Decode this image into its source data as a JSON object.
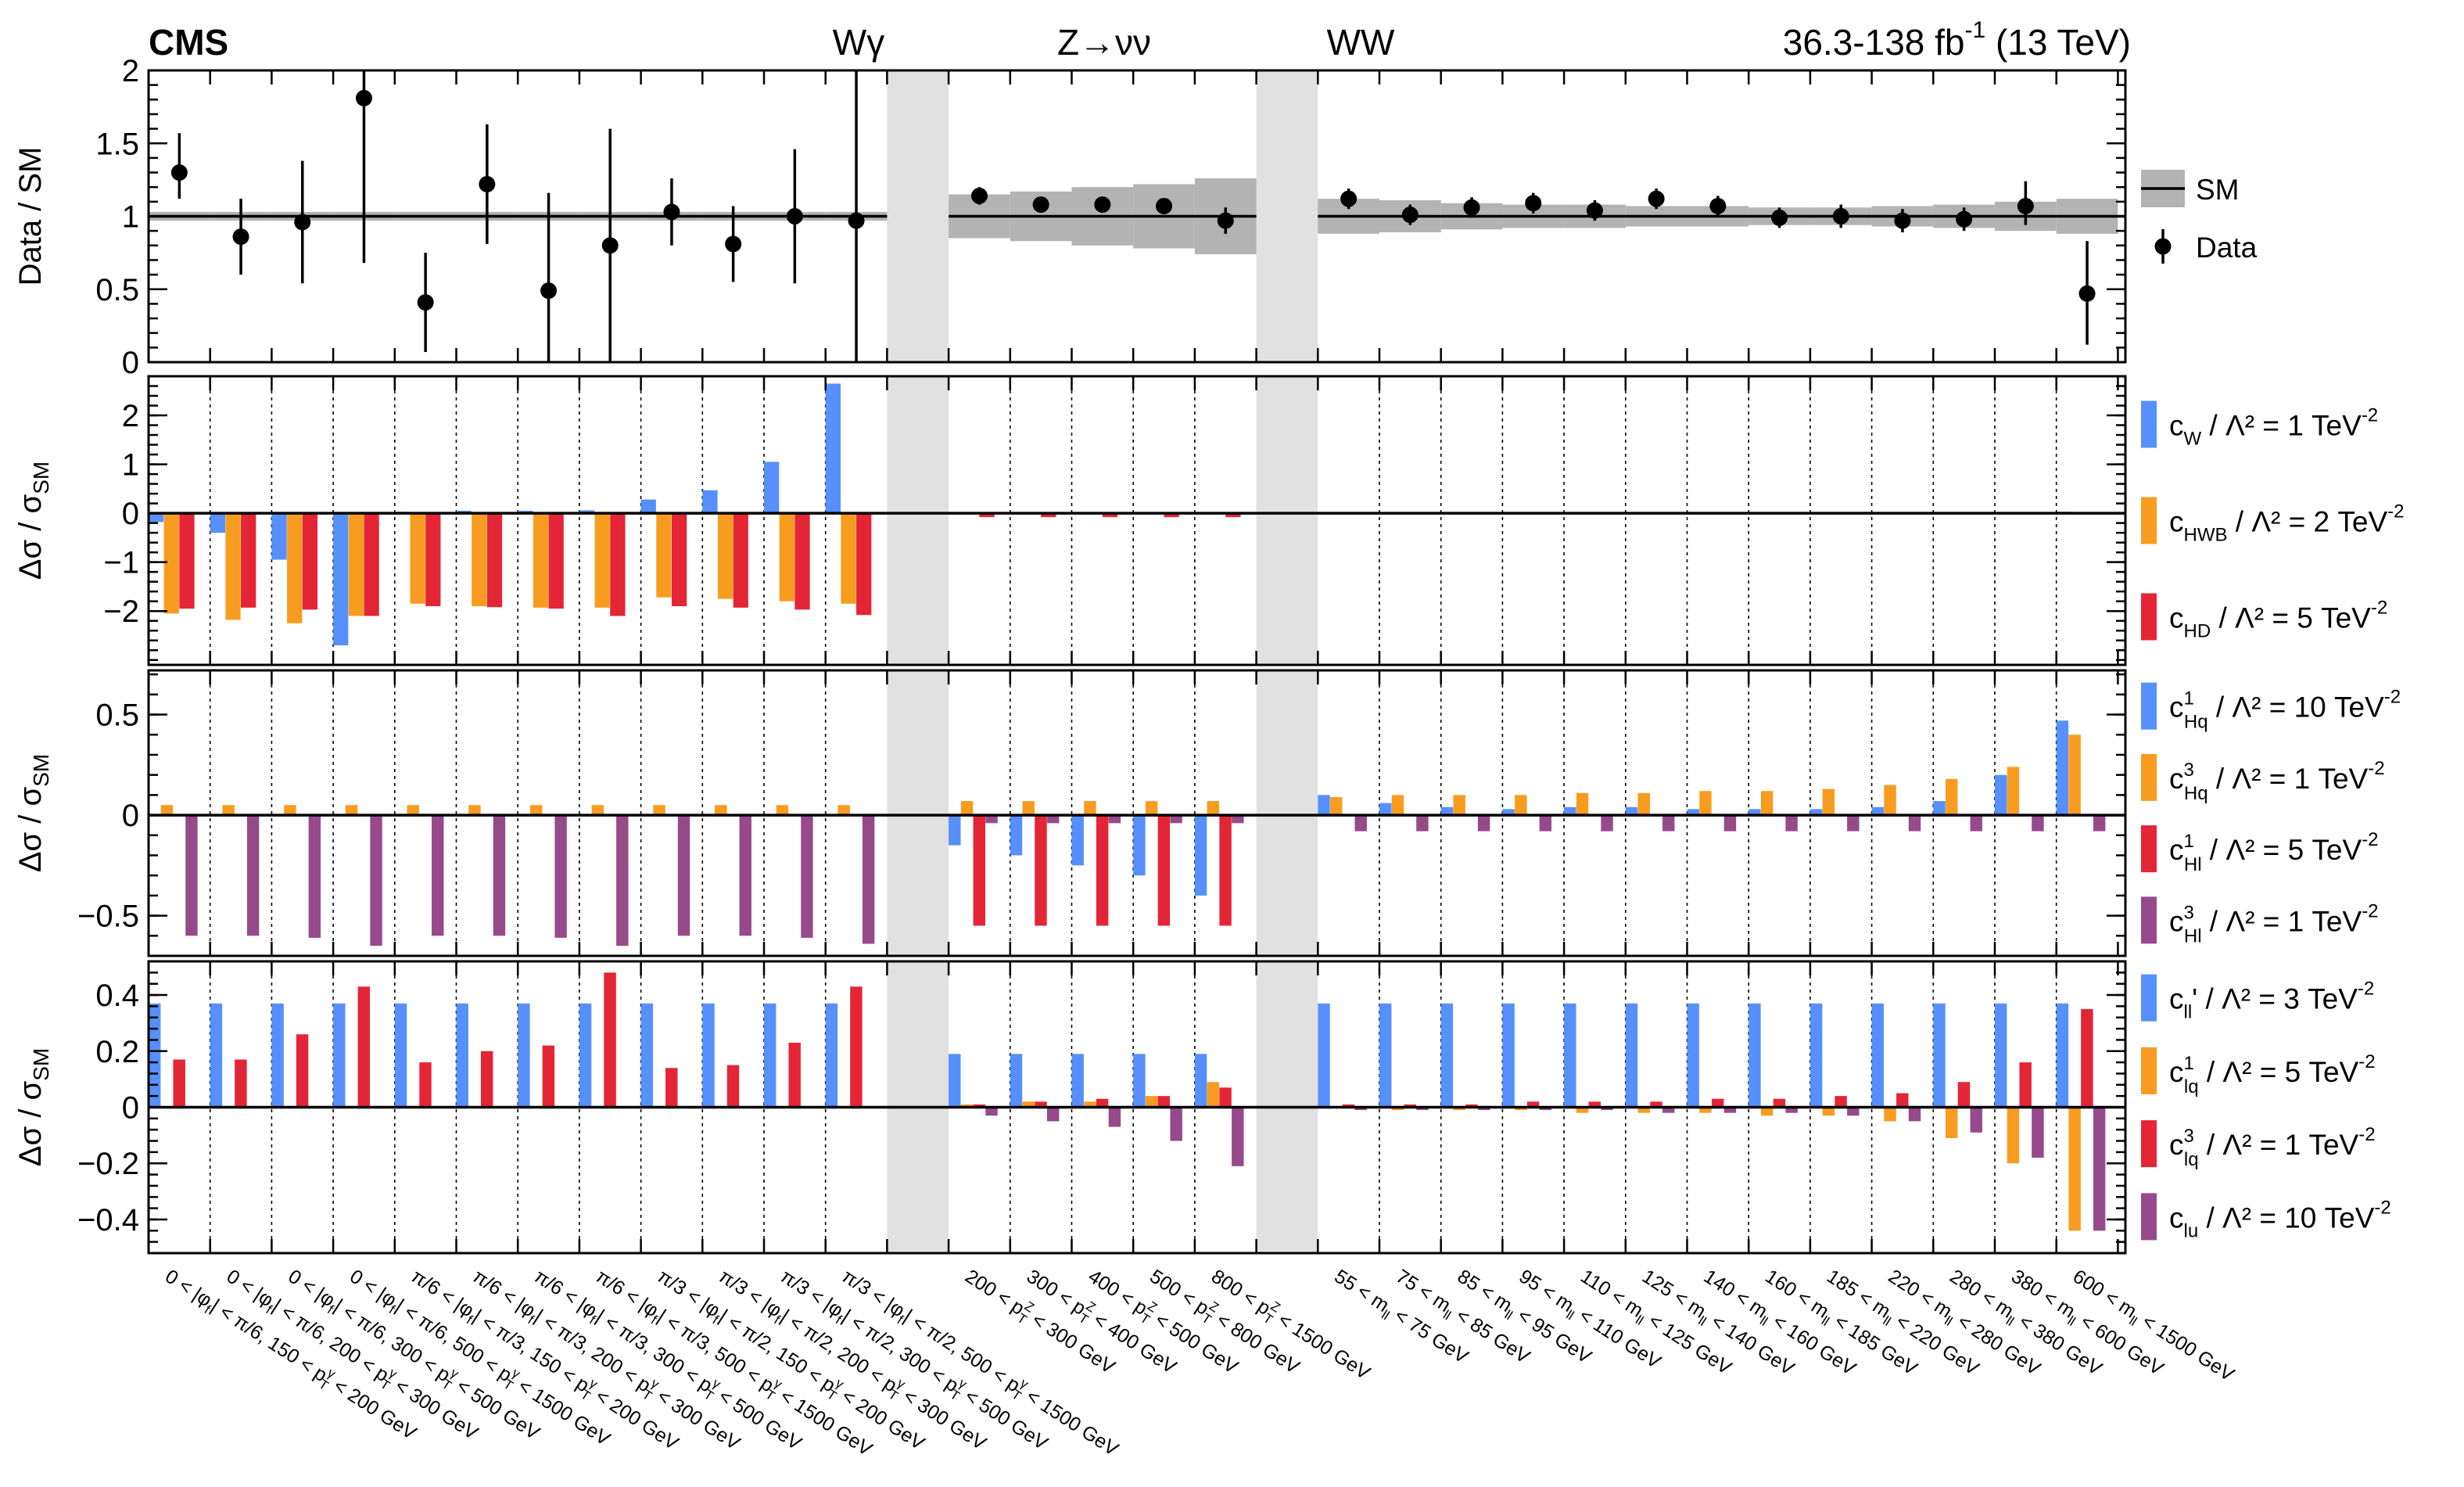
{
  "header": {
    "experiment": "CMS",
    "lumi": "36.3-138 fb",
    "lumi_sup": "-1",
    "energy": " (13 TeV)",
    "groups": [
      "Wγ",
      "Z→νν",
      "WW"
    ]
  },
  "colors": {
    "blue": "#5790fc",
    "orange": "#f89c20",
    "red": "#e42536",
    "purple": "#964a8b",
    "sm_band": "#b3b3b3",
    "gap": "#e1e1e1"
  },
  "chart_data": {
    "type": "bar",
    "categories": [
      "0 < |φ_f| < π/6, 150 < p_T^γ < 200 GeV",
      "0 < |φ_f| < π/6, 200 < p_T^γ < 300 GeV",
      "0 < |φ_f| < π/6, 300 < p_T^γ < 500 GeV",
      "0 < |φ_f| < π/6, 500 < p_T^γ < 1500 GeV",
      "π/6 < |φ_f| < π/3, 150 < p_T^γ < 200 GeV",
      "π/6 < |φ_f| < π/3, 200 < p_T^γ < 300 GeV",
      "π/6 < |φ_f| < π/3, 300 < p_T^γ < 500 GeV",
      "π/6 < |φ_f| < π/3, 500 < p_T^γ < 1500 GeV",
      "π/3 < |φ_f| < π/2, 150 < p_T^γ < 200 GeV",
      "π/3 < |φ_f| < π/2, 200 < p_T^γ < 300 GeV",
      "π/3 < |φ_f| < π/2, 300 < p_T^γ < 500 GeV",
      "π/3 < |φ_f| < π/2, 500 < p_T^γ < 1500 GeV",
      "200 < p_T^Z < 300 GeV",
      "300 < p_T^Z < 400 GeV",
      "400 < p_T^Z < 500 GeV",
      "500 < p_T^Z < 800 GeV",
      "800 < p_T^Z < 1500 GeV",
      "55 < m_ll < 75 GeV",
      "75 < m_ll < 85 GeV",
      "85 < m_ll < 95 GeV",
      "95 < m_ll < 110 GeV",
      "110 < m_ll < 125 GeV",
      "125 < m_ll < 140 GeV",
      "140 < m_ll < 160 GeV",
      "160 < m_ll < 185 GeV",
      "185 < m_ll < 220 GeV",
      "220 < m_ll < 280 GeV",
      "280 < m_ll < 380 GeV",
      "380 < m_ll < 600 GeV",
      "600 < m_ll < 1500 GeV"
    ],
    "category_labels": [
      {
        "pre": "0 < |φ",
        "sub1": "f",
        "mid": "| < π/6, 150 < p",
        "sub2": "T",
        "sup2": "γ",
        "post": " < 200 GeV"
      },
      {
        "pre": "0 < |φ",
        "sub1": "f",
        "mid": "| < π/6, 200 < p",
        "sub2": "T",
        "sup2": "γ",
        "post": " < 300 GeV"
      },
      {
        "pre": "0 < |φ",
        "sub1": "f",
        "mid": "| < π/6, 300 < p",
        "sub2": "T",
        "sup2": "γ",
        "post": " < 500 GeV"
      },
      {
        "pre": "0 < |φ",
        "sub1": "f",
        "mid": "| < π/6, 500 < p",
        "sub2": "T",
        "sup2": "γ",
        "post": " < 1500 GeV"
      },
      {
        "pre": "π/6 < |φ",
        "sub1": "f",
        "mid": "| < π/3, 150 < p",
        "sub2": "T",
        "sup2": "γ",
        "post": " < 200 GeV"
      },
      {
        "pre": "π/6 < |φ",
        "sub1": "f",
        "mid": "| < π/3, 200 < p",
        "sub2": "T",
        "sup2": "γ",
        "post": " < 300 GeV"
      },
      {
        "pre": "π/6 < |φ",
        "sub1": "f",
        "mid": "| < π/3, 300 < p",
        "sub2": "T",
        "sup2": "γ",
        "post": " < 500 GeV"
      },
      {
        "pre": "π/6 < |φ",
        "sub1": "f",
        "mid": "| < π/3, 500 < p",
        "sub2": "T",
        "sup2": "γ",
        "post": " < 1500 GeV"
      },
      {
        "pre": "π/3 < |φ",
        "sub1": "f",
        "mid": "| < π/2, 150 < p",
        "sub2": "T",
        "sup2": "γ",
        "post": " < 200 GeV"
      },
      {
        "pre": "π/3 < |φ",
        "sub1": "f",
        "mid": "| < π/2, 200 < p",
        "sub2": "T",
        "sup2": "γ",
        "post": " < 300 GeV"
      },
      {
        "pre": "π/3 < |φ",
        "sub1": "f",
        "mid": "| < π/2, 300 < p",
        "sub2": "T",
        "sup2": "γ",
        "post": " < 500 GeV"
      },
      {
        "pre": "π/3 < |φ",
        "sub1": "f",
        "mid": "| < π/2, 500 < p",
        "sub2": "T",
        "sup2": "γ",
        "post": " < 1500 GeV"
      },
      {
        "pre": "200 < p",
        "sub2": "T",
        "sup2": "Z",
        "post": " < 300 GeV"
      },
      {
        "pre": "300 < p",
        "sub2": "T",
        "sup2": "Z",
        "post": " < 400 GeV"
      },
      {
        "pre": "400 < p",
        "sub2": "T",
        "sup2": "Z",
        "post": " < 500 GeV"
      },
      {
        "pre": "500 < p",
        "sub2": "T",
        "sup2": "Z",
        "post": " < 800 GeV"
      },
      {
        "pre": "800 < p",
        "sub2": "T",
        "sup2": "Z",
        "post": " < 1500 GeV"
      },
      {
        "pre": "55 < m",
        "sub2": "ll",
        "post": " < 75 GeV"
      },
      {
        "pre": "75 < m",
        "sub2": "ll",
        "post": " < 85 GeV"
      },
      {
        "pre": "85 < m",
        "sub2": "ll",
        "post": " < 95 GeV"
      },
      {
        "pre": "95 < m",
        "sub2": "ll",
        "post": " < 110 GeV"
      },
      {
        "pre": "110 < m",
        "sub2": "ll",
        "post": " < 125 GeV"
      },
      {
        "pre": "125 < m",
        "sub2": "ll",
        "post": " < 140 GeV"
      },
      {
        "pre": "140 < m",
        "sub2": "ll",
        "post": " < 160 GeV"
      },
      {
        "pre": "160 < m",
        "sub2": "ll",
        "post": " < 185 GeV"
      },
      {
        "pre": "185 < m",
        "sub2": "ll",
        "post": " < 220 GeV"
      },
      {
        "pre": "220 < m",
        "sub2": "ll",
        "post": " < 280 GeV"
      },
      {
        "pre": "280 < m",
        "sub2": "ll",
        "post": " < 380 GeV"
      },
      {
        "pre": "380 < m",
        "sub2": "ll",
        "post": " < 600 GeV"
      },
      {
        "pre": "600 < m",
        "sub2": "ll",
        "post": " < 1500 GeV"
      }
    ],
    "panels": [
      {
        "kind": "ratio",
        "ylabel": "Data / SM",
        "ylim": [
          0,
          2
        ],
        "yticks": [
          0,
          0.5,
          1,
          1.5,
          2
        ],
        "yticklabels": [
          "0",
          "0.5",
          "1",
          "1.5",
          "2"
        ],
        "legend": [
          {
            "type": "band",
            "label": "SM"
          },
          {
            "type": "marker",
            "label": "Data"
          }
        ],
        "data": [
          1.3,
          0.86,
          0.96,
          1.81,
          0.41,
          1.22,
          0.49,
          0.8,
          1.03,
          0.81,
          1.0,
          0.97,
          1.14,
          1.08,
          1.08,
          1.07,
          0.97,
          1.12,
          1.01,
          1.06,
          1.09,
          1.04,
          1.12,
          1.07,
          0.99,
          1.0,
          0.97,
          0.98,
          1.07,
          0.47
        ],
        "err_up": [
          0.27,
          0.26,
          0.42,
          0.48,
          0.34,
          0.41,
          0.67,
          0.8,
          0.23,
          0.26,
          0.46,
          1.1,
          0.06,
          0.04,
          0.05,
          0.05,
          0.09,
          0.07,
          0.07,
          0.07,
          0.07,
          0.07,
          0.07,
          0.07,
          0.07,
          0.08,
          0.08,
          0.08,
          0.17,
          0.36
        ],
        "err_down": [
          0.18,
          0.26,
          0.42,
          1.13,
          0.34,
          0.41,
          0.49,
          0.8,
          0.23,
          0.26,
          0.46,
          0.97,
          0.06,
          0.04,
          0.05,
          0.05,
          0.09,
          0.07,
          0.07,
          0.07,
          0.07,
          0.07,
          0.07,
          0.07,
          0.07,
          0.08,
          0.08,
          0.08,
          0.13,
          0.35
        ],
        "sm_band": [
          0.03,
          0.03,
          0.03,
          0.03,
          0.03,
          0.03,
          0.03,
          0.03,
          0.03,
          0.03,
          0.03,
          0.03,
          0.15,
          0.17,
          0.2,
          0.22,
          0.26,
          0.12,
          0.11,
          0.09,
          0.08,
          0.08,
          0.07,
          0.07,
          0.06,
          0.06,
          0.07,
          0.08,
          0.1,
          0.12
        ]
      },
      {
        "kind": "bars",
        "ylabel": "Δσ / σ",
        "ylabel_sub": "SM",
        "ylim": [
          -3.1,
          2.8
        ],
        "yticks": [
          -2,
          -1,
          0,
          1,
          2
        ],
        "yticklabels": [
          "−2",
          "−1",
          "0",
          "1",
          "2"
        ],
        "series": [
          {
            "coef": "c",
            "sub": "W",
            "sup": "",
            "rhs": " / Λ² = 1 TeV",
            "exp": "-2",
            "color": "blue",
            "values": [
              -0.18,
              -0.4,
              -0.95,
              -2.7,
              0.03,
              0.05,
              0.05,
              0.06,
              0.28,
              0.47,
              1.05,
              2.65,
              0.0,
              0.0,
              0.0,
              0.0,
              0.0,
              0.0,
              0.0,
              0.0,
              0.0,
              0.0,
              0.0,
              0.0,
              0.0,
              0.0,
              0.0,
              0.0,
              0.02,
              0.03
            ]
          },
          {
            "coef": "c",
            "sub": "HWB",
            "sup": "",
            "rhs": " / Λ² = 2 TeV",
            "exp": "-2",
            "color": "orange",
            "values": [
              -2.05,
              -2.18,
              -2.25,
              -2.1,
              -1.85,
              -1.9,
              -1.93,
              -1.93,
              -1.72,
              -1.75,
              -1.8,
              -1.85,
              0.0,
              0.0,
              0.0,
              0.0,
              0.0,
              0.0,
              0.0,
              0.0,
              0.0,
              0.0,
              0.0,
              0.0,
              0.0,
              0.0,
              0.0,
              0.0,
              0.0,
              0.0
            ]
          },
          {
            "coef": "c",
            "sub": "HD",
            "sup": "",
            "rhs": " / Λ² = 5 TeV",
            "exp": "-2",
            "color": "red",
            "values": [
              -1.95,
              -1.93,
              -1.97,
              -2.1,
              -1.9,
              -1.92,
              -1.95,
              -2.1,
              -1.9,
              -1.93,
              -1.97,
              -2.08,
              -0.08,
              -0.08,
              -0.08,
              -0.08,
              -0.08,
              0.0,
              0.0,
              0.0,
              0.0,
              0.0,
              0.0,
              0.0,
              0.0,
              0.0,
              0.0,
              0.0,
              0.0,
              0.0
            ]
          }
        ]
      },
      {
        "kind": "bars",
        "ylabel": "Δσ / σ",
        "ylabel_sub": "SM",
        "ylim": [
          -0.7,
          0.72
        ],
        "yticks": [
          -0.5,
          0,
          0.5
        ],
        "yticklabels": [
          "−0.5",
          "0",
          "0.5"
        ],
        "series": [
          {
            "coef": "c",
            "sub": "Hq",
            "sup": "1",
            "rhs": " / Λ² = 10 TeV",
            "exp": "-2",
            "color": "blue",
            "values": [
              0.0,
              0.0,
              0.0,
              0.0,
              0.0,
              0.0,
              0.0,
              0.0,
              0.0,
              0.0,
              0.0,
              0.0,
              -0.15,
              -0.2,
              -0.25,
              -0.3,
              -0.4,
              0.1,
              0.06,
              0.04,
              0.03,
              0.04,
              0.04,
              0.03,
              0.03,
              0.03,
              0.04,
              0.07,
              0.2,
              0.47
            ]
          },
          {
            "coef": "c",
            "sub": "Hq",
            "sup": "3",
            "rhs": " / Λ² = 1 TeV",
            "exp": "-2",
            "color": "orange",
            "values": [
              0.05,
              0.05,
              0.05,
              0.05,
              0.05,
              0.05,
              0.05,
              0.05,
              0.05,
              0.05,
              0.05,
              0.05,
              0.07,
              0.07,
              0.07,
              0.07,
              0.07,
              0.09,
              0.1,
              0.1,
              0.1,
              0.11,
              0.11,
              0.12,
              0.12,
              0.13,
              0.15,
              0.18,
              0.24,
              0.4
            ]
          },
          {
            "coef": "c",
            "sub": "Hl",
            "sup": "1",
            "rhs": " / Λ² = 5 TeV",
            "exp": "-2",
            "color": "red",
            "values": [
              0.0,
              0.0,
              0.0,
              0.0,
              0.0,
              0.0,
              0.0,
              0.0,
              0.0,
              0.0,
              0.0,
              0.0,
              -0.55,
              -0.55,
              -0.55,
              -0.55,
              -0.55,
              0.0,
              0.0,
              0.0,
              0.0,
              0.0,
              0.0,
              0.0,
              0.0,
              0.0,
              0.0,
              0.0,
              0.0,
              0.0
            ]
          },
          {
            "coef": "c",
            "sub": "Hl",
            "sup": "3",
            "rhs": " / Λ² = 1 TeV",
            "exp": "-2",
            "color": "purple",
            "values": [
              -0.6,
              -0.6,
              -0.61,
              -0.65,
              -0.6,
              -0.6,
              -0.61,
              -0.65,
              -0.6,
              -0.6,
              -0.61,
              -0.64,
              -0.04,
              -0.04,
              -0.04,
              -0.04,
              -0.04,
              -0.08,
              -0.08,
              -0.08,
              -0.08,
              -0.08,
              -0.08,
              -0.08,
              -0.08,
              -0.08,
              -0.08,
              -0.08,
              -0.08,
              -0.08
            ]
          }
        ]
      },
      {
        "kind": "bars",
        "ylabel": "Δσ / σ",
        "ylabel_sub": "SM",
        "ylim": [
          -0.52,
          0.52
        ],
        "yticks": [
          -0.4,
          -0.2,
          0,
          0.2,
          0.4
        ],
        "yticklabels": [
          "−0.4",
          "−0.2",
          "0",
          "0.2",
          "0.4"
        ],
        "series": [
          {
            "coef": "c",
            "sub": "ll",
            "sup": "",
            "prime": "'",
            "rhs": " / Λ² = 3 TeV",
            "exp": "-2",
            "color": "blue",
            "values": [
              0.37,
              0.37,
              0.37,
              0.37,
              0.37,
              0.37,
              0.37,
              0.37,
              0.37,
              0.37,
              0.37,
              0.37,
              0.19,
              0.19,
              0.19,
              0.19,
              0.19,
              0.37,
              0.37,
              0.37,
              0.37,
              0.37,
              0.37,
              0.37,
              0.37,
              0.37,
              0.37,
              0.37,
              0.37,
              0.37
            ]
          },
          {
            "coef": "c",
            "sub": "lq",
            "sup": "1",
            "rhs": " / Λ² = 5 TeV",
            "exp": "-2",
            "color": "orange",
            "values": [
              0.0,
              0.0,
              0.0,
              0.0,
              0.0,
              0.0,
              0.0,
              0.0,
              0.0,
              0.0,
              0.0,
              0.0,
              0.01,
              0.02,
              0.02,
              0.04,
              0.09,
              0.0,
              -0.01,
              -0.01,
              -0.01,
              -0.02,
              -0.02,
              -0.02,
              -0.03,
              -0.03,
              -0.05,
              -0.11,
              -0.2,
              -0.44
            ]
          },
          {
            "coef": "c",
            "sub": "lq",
            "sup": "3",
            "rhs": " / Λ² = 1 TeV",
            "exp": "-2",
            "color": "red",
            "values": [
              0.17,
              0.17,
              0.26,
              0.43,
              0.16,
              0.2,
              0.22,
              0.48,
              0.14,
              0.15,
              0.23,
              0.43,
              0.01,
              0.02,
              0.03,
              0.04,
              0.07,
              0.01,
              0.01,
              0.01,
              0.02,
              0.02,
              0.02,
              0.03,
              0.03,
              0.04,
              0.05,
              0.09,
              0.16,
              0.35
            ]
          },
          {
            "coef": "c",
            "sub": "lu",
            "sup": "",
            "rhs": " / Λ² = 10 TeV",
            "exp": "-2",
            "color": "purple",
            "values": [
              0.0,
              0.0,
              0.0,
              0.0,
              0.0,
              0.0,
              0.0,
              0.0,
              0.0,
              0.0,
              0.0,
              0.0,
              -0.03,
              -0.05,
              -0.07,
              -0.12,
              -0.21,
              -0.01,
              -0.01,
              -0.01,
              -0.01,
              -0.01,
              -0.02,
              -0.02,
              -0.02,
              -0.03,
              -0.05,
              -0.09,
              -0.18,
              -0.44
            ]
          }
        ]
      }
    ],
    "grid": "dashed vertical separators between categories",
    "legend_position": "right"
  }
}
